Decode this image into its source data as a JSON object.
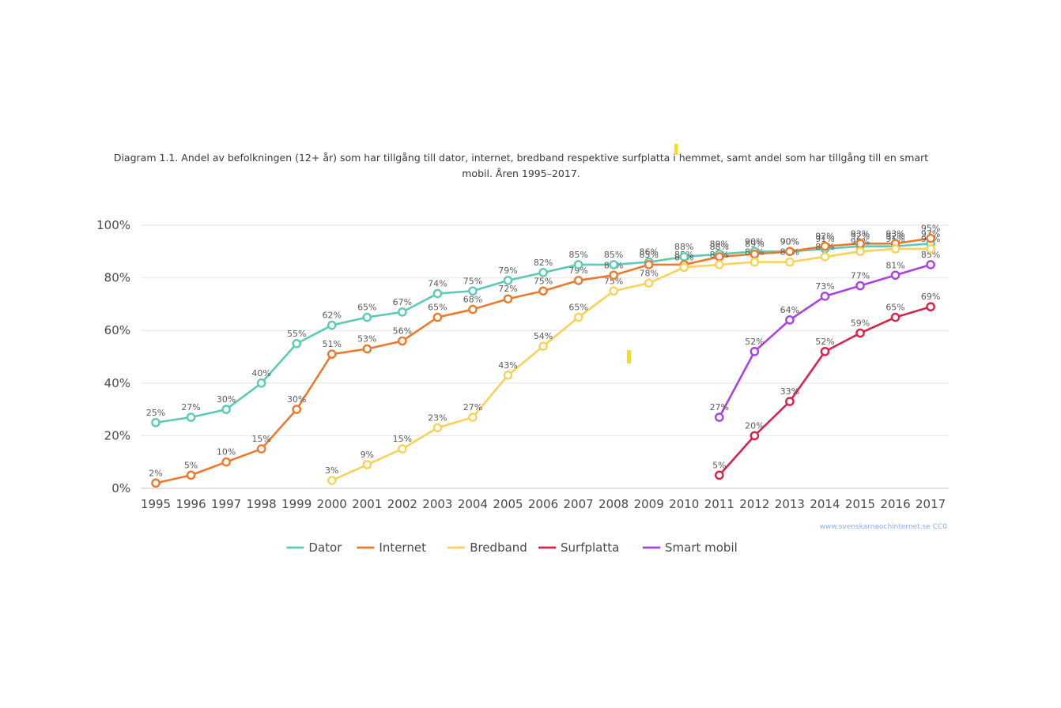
{
  "chart_data": {
    "type": "line",
    "title": "Diagram 1.1. Andel av befolkningen (12+ år) som har tillgång till dator, internet, bredband respektive surfplatta i hemmet, samt andel som har tillgång till en smart mobil. Åren 1995–2017.",
    "xlabel": "",
    "ylabel": "",
    "x": [
      "1995",
      "1996",
      "1997",
      "1998",
      "1999",
      "2000",
      "2001",
      "2002",
      "2003",
      "2004",
      "2005",
      "2006",
      "2007",
      "2008",
      "2009",
      "2010",
      "2011",
      "2012",
      "2013",
      "2014",
      "2015",
      "2016",
      "2017"
    ],
    "ylim": [
      0,
      100
    ],
    "yticks": [
      "0%",
      "20%",
      "40%",
      "60%",
      "80%",
      "100%"
    ],
    "grid": true,
    "legend_position": "bottom",
    "source": "www.svenskarnaochinternet.se CC0",
    "series": [
      {
        "name": "Dator",
        "color": "#5ccbb4",
        "values": [
          25,
          27,
          30,
          40,
          55,
          62,
          65,
          67,
          74,
          75,
          79,
          82,
          85,
          85,
          86,
          88,
          89,
          90,
          90,
          91,
          92,
          92,
          93
        ]
      },
      {
        "name": "Internet",
        "color": "#ec7a2c",
        "values": [
          2,
          5,
          10,
          15,
          30,
          51,
          53,
          56,
          65,
          68,
          72,
          75,
          79,
          81,
          85,
          85,
          88,
          89,
          90,
          92,
          93,
          93,
          95
        ]
      },
      {
        "name": "Bredband",
        "color": "#f7d25a",
        "values": [
          null,
          null,
          null,
          null,
          null,
          3,
          9,
          15,
          23,
          27,
          43,
          54,
          65,
          75,
          78,
          84,
          85,
          86,
          86,
          88,
          90,
          91,
          91
        ]
      },
      {
        "name": "Surfplatta",
        "color": "#d7244a",
        "values": [
          null,
          null,
          null,
          null,
          null,
          null,
          null,
          null,
          null,
          null,
          null,
          null,
          null,
          null,
          null,
          null,
          5,
          20,
          33,
          52,
          59,
          65,
          69
        ]
      },
      {
        "name": "Smart mobil",
        "color": "#a943e1",
        "values": [
          null,
          null,
          null,
          null,
          null,
          null,
          null,
          null,
          null,
          null,
          null,
          null,
          null,
          null,
          null,
          null,
          27,
          52,
          64,
          73,
          77,
          81,
          85
        ]
      }
    ]
  }
}
